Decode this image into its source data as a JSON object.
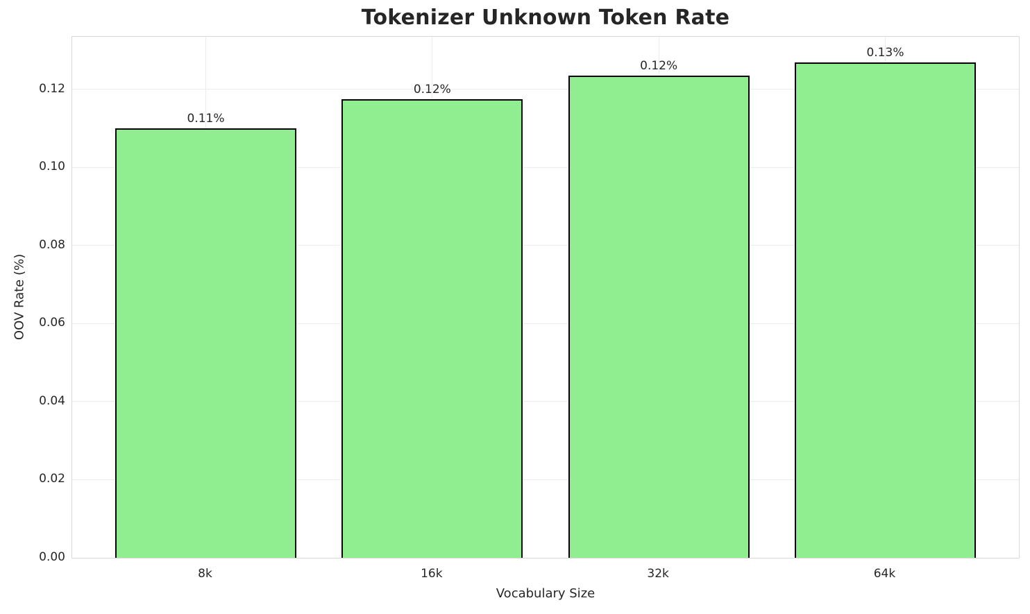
{
  "chart_data": {
    "type": "bar",
    "title": "Tokenizer Unknown Token Rate",
    "xlabel": "Vocabulary Size",
    "ylabel": "OOV Rate (%)",
    "categories": [
      "8k",
      "16k",
      "32k",
      "64k"
    ],
    "values": [
      0.11,
      0.1175,
      0.1235,
      0.127
    ],
    "bar_labels": [
      "0.11%",
      "0.12%",
      "0.12%",
      "0.13%"
    ],
    "ytick_values": [
      0.0,
      0.02,
      0.04,
      0.06,
      0.08,
      0.1,
      0.12
    ],
    "ytick_labels": [
      "0.00",
      "0.02",
      "0.04",
      "0.06",
      "0.08",
      "0.10",
      "0.12"
    ],
    "ylim": [
      0,
      0.1335
    ],
    "grid": true,
    "legend": null,
    "bar_color": "#90EE90",
    "bar_edge_color": "#000000",
    "grid_color": "#ececec",
    "spine_color": "#d9d9d9",
    "text_color": "#262626"
  }
}
